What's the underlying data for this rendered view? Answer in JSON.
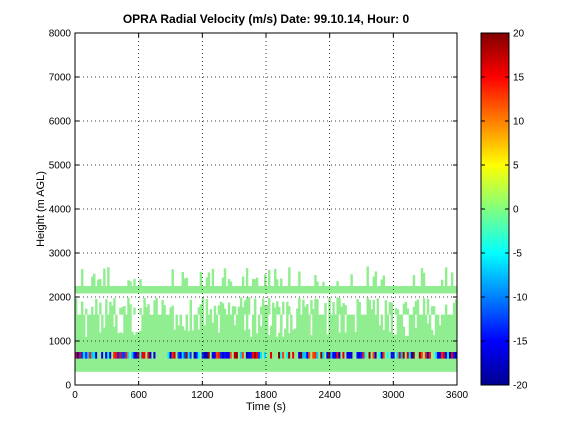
{
  "chart_data": {
    "type": "heatmap",
    "title": "OPRA Radial Velocity (m/s)  Date: 99.10.14, Hour: 0",
    "xlabel": "Time (s)",
    "ylabel": "Height (m AGL)",
    "xlim": [
      0,
      3600
    ],
    "ylim": [
      0,
      8000
    ],
    "xticks": [
      "0",
      "600",
      "1200",
      "1800",
      "2400",
      "3000",
      "3600"
    ],
    "yticks": [
      "0",
      "1000",
      "2000",
      "3000",
      "4000",
      "5000",
      "6000",
      "7000",
      "8000"
    ],
    "grid": true,
    "colorbar": {
      "range": [
        -20,
        20
      ],
      "ticks": [
        "20",
        "15",
        "10",
        "5",
        "0",
        "-5",
        "-10",
        "-15",
        "-20"
      ],
      "colormap": "jet"
    },
    "layers": [
      {
        "height_range": [
          300,
          600
        ],
        "value": 0,
        "coverage": "continuous"
      },
      {
        "height_range": [
          600,
          750
        ],
        "value": 0,
        "coverage": "continuous",
        "note": "mixed strong +/- values"
      },
      {
        "height_range": [
          750,
          1600
        ],
        "value": 0,
        "coverage": "mostly continuous"
      },
      {
        "height_range": [
          1600,
          2000
        ],
        "value": 0,
        "coverage": "patchy"
      },
      {
        "height_range": [
          2080,
          2250
        ],
        "value": 0,
        "coverage": "continuous"
      },
      {
        "height_range": [
          2250,
          2700
        ],
        "value": 0,
        "coverage": "sparse"
      }
    ],
    "colors": {
      "background_value_color": "#90ee90"
    }
  }
}
